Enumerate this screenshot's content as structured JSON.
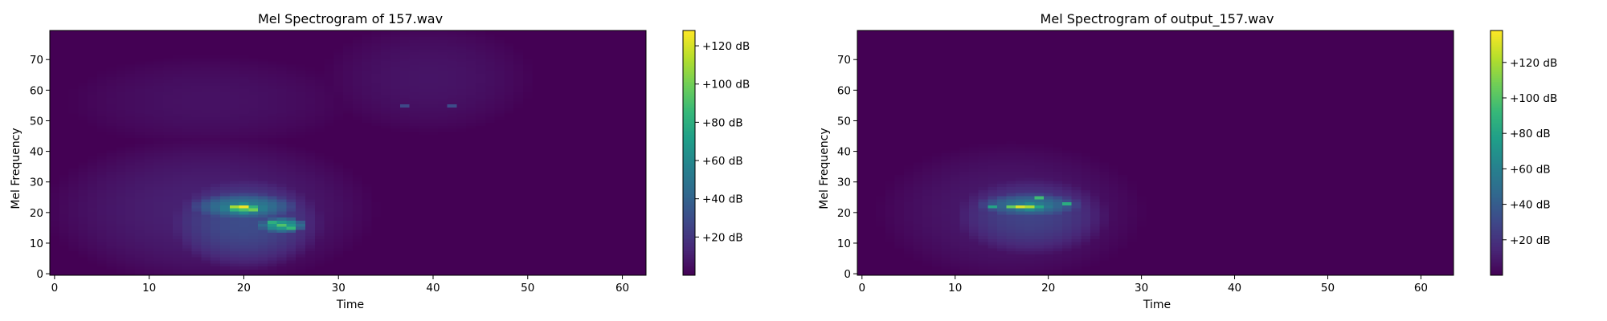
{
  "chart_data": [
    {
      "type": "heatmap",
      "title": "Mel Spectrogram of 157.wav",
      "xlabel": "Time",
      "ylabel": "Mel Frequency",
      "xlim": [
        -0.5,
        62.5
      ],
      "ylim": [
        -0.5,
        79.5
      ],
      "x_ticks": [
        0,
        10,
        20,
        30,
        40,
        50,
        60
      ],
      "y_ticks": [
        0,
        10,
        20,
        30,
        40,
        50,
        60,
        70
      ],
      "colormap": "viridis",
      "colorbar": {
        "range": [
          0,
          128
        ],
        "ticks": [
          20,
          40,
          60,
          80,
          100,
          120
        ],
        "tick_labels": [
          "+20 dB",
          "+40 dB",
          "+60 dB",
          "+80 dB",
          "+100 dB",
          "+120 dB"
        ]
      },
      "blobs": [
        {
          "time": [
            3,
            30
          ],
          "mel": [
            2,
            40
          ],
          "level": 12
        },
        {
          "time": [
            5,
            28
          ],
          "mel": [
            45,
            68
          ],
          "level": 6
        },
        {
          "time": [
            31,
            48
          ],
          "mel": [
            50,
            78
          ],
          "level": 7
        },
        {
          "time": [
            13,
            27
          ],
          "mel": [
            4,
            30
          ],
          "level": 30
        },
        {
          "time": [
            15,
            25
          ],
          "mel": [
            18,
            26
          ],
          "level": 55
        },
        {
          "time": [
            18,
            22
          ],
          "mel": [
            20,
            23
          ],
          "level": 95
        },
        {
          "time": [
            22,
            26
          ],
          "mel": [
            14,
            18
          ],
          "level": 75
        }
      ],
      "hot_cells": [
        {
          "time": 20,
          "mel": 22,
          "value": 125
        },
        {
          "time": 19,
          "mel": 22,
          "value": 110
        },
        {
          "time": 21,
          "mel": 21,
          "value": 100
        },
        {
          "time": 24,
          "mel": 16,
          "value": 92
        },
        {
          "time": 25,
          "mel": 15,
          "value": 85
        },
        {
          "time": 23,
          "mel": 17,
          "value": 80
        },
        {
          "time": 37,
          "mel": 55,
          "value": 28
        },
        {
          "time": 42,
          "mel": 55,
          "value": 30
        }
      ]
    },
    {
      "type": "heatmap",
      "title": "Mel Spectrogram of output_157.wav",
      "xlabel": "Time",
      "ylabel": "Mel Frequency",
      "xlim": [
        -0.5,
        63.5
      ],
      "ylim": [
        -0.5,
        79.5
      ],
      "x_ticks": [
        0,
        10,
        20,
        30,
        40,
        50,
        60
      ],
      "y_ticks": [
        0,
        10,
        20,
        30,
        40,
        50,
        60,
        70
      ],
      "colormap": "viridis",
      "colorbar": {
        "range": [
          0,
          138
        ],
        "ticks": [
          20,
          40,
          60,
          80,
          100,
          120
        ],
        "tick_labels": [
          "+20 dB",
          "+40 dB",
          "+60 dB",
          "+80 dB",
          "+100 dB",
          "+120 dB"
        ]
      },
      "blobs": [
        {
          "time": [
            5,
            27
          ],
          "mel": [
            3,
            38
          ],
          "level": 10
        },
        {
          "time": [
            11,
            25
          ],
          "mel": [
            8,
            30
          ],
          "level": 28
        },
        {
          "time": [
            13,
            23
          ],
          "mel": [
            19,
            26
          ],
          "level": 55
        },
        {
          "time": [
            16,
            20
          ],
          "mel": [
            21,
            23
          ],
          "level": 90
        }
      ],
      "hot_cells": [
        {
          "time": 17,
          "mel": 22,
          "value": 130
        },
        {
          "time": 18,
          "mel": 22,
          "value": 120
        },
        {
          "time": 16,
          "mel": 22,
          "value": 105
        },
        {
          "time": 19,
          "mel": 25,
          "value": 95
        },
        {
          "time": 22,
          "mel": 23,
          "value": 85
        },
        {
          "time": 14,
          "mel": 22,
          "value": 80
        }
      ]
    }
  ]
}
